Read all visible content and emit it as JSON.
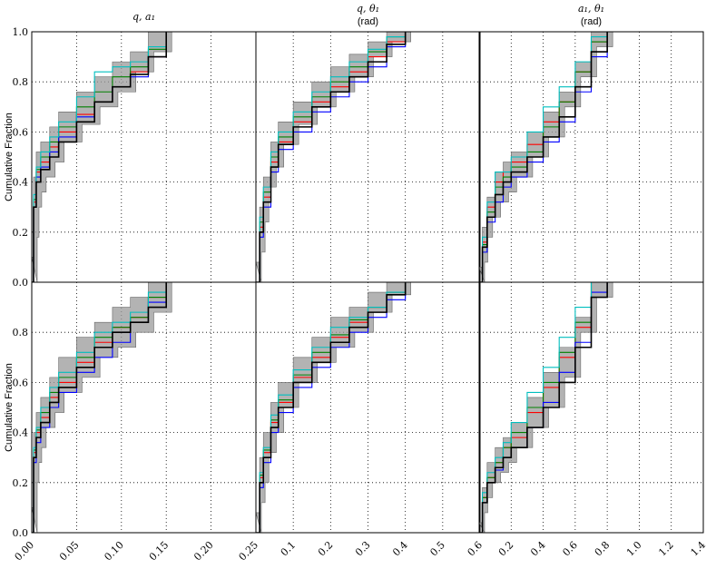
{
  "chart_data": [
    {
      "type": "step",
      "title": "q, a₁",
      "ylabel": "Cumulative Fraction",
      "xlim": [
        0,
        0.25
      ],
      "ylim": [
        0,
        1
      ],
      "grid": true,
      "xticklabels": false,
      "xticks": [
        0.05,
        0.1,
        0.15,
        0.2
      ],
      "yticks": [
        {
          "value": 0,
          "label": "0.0"
        },
        0.2,
        0.4,
        0.6,
        0.8,
        {
          "value": 1,
          "label": "1.0"
        }
      ],
      "x": [
        0,
        0.002,
        0.005,
        0.01,
        0.02,
        0.03,
        0.05,
        0.07,
        0.09,
        0.11,
        0.13,
        0.15
      ],
      "band": {
        "color": "#999999",
        "lower": [
          0,
          0.18,
          0.3,
          0.36,
          0.42,
          0.48,
          0.56,
          0.63,
          0.7,
          0.76,
          0.84,
          0.92
        ],
        "upper": [
          0.1,
          0.42,
          0.52,
          0.56,
          0.62,
          0.68,
          0.76,
          0.82,
          0.88,
          0.92,
          1.0,
          1.0
        ]
      },
      "series": [
        {
          "color": "#ff0000",
          "values": [
            0,
            0.32,
            0.44,
            0.48,
            0.54,
            0.6,
            0.67,
            0.72,
            0.78,
            0.84,
            0.9,
            1.0
          ]
        },
        {
          "color": "#008000",
          "values": [
            0,
            0.33,
            0.45,
            0.5,
            0.56,
            0.62,
            0.7,
            0.76,
            0.82,
            0.86,
            0.93,
            1.0
          ]
        },
        {
          "color": "#0000ff",
          "values": [
            0,
            0.3,
            0.42,
            0.46,
            0.52,
            0.58,
            0.66,
            0.72,
            0.78,
            0.82,
            0.9,
            1.0
          ]
        },
        {
          "color": "#00bfbf",
          "values": [
            0,
            0.35,
            0.46,
            0.52,
            0.58,
            0.64,
            0.74,
            0.84,
            0.86,
            0.88,
            0.94,
            1.0
          ]
        },
        {
          "color": "#000000",
          "values": [
            0,
            0.3,
            0.4,
            0.45,
            0.5,
            0.56,
            0.64,
            0.72,
            0.78,
            0.83,
            0.9,
            1.0
          ]
        }
      ]
    },
    {
      "type": "step",
      "title": "q, θ₁",
      "subtitle": "(rad)",
      "xlim": [
        0,
        0.6
      ],
      "ylim": [
        0,
        1
      ],
      "grid": true,
      "xticklabels": false,
      "yticklabels": false,
      "xticks": [
        0.1,
        0.2,
        0.3,
        0.4,
        0.5
      ],
      "yticks": [
        0.2,
        0.4,
        0.6,
        0.8
      ],
      "x": [
        0,
        0.01,
        0.02,
        0.04,
        0.06,
        0.1,
        0.15,
        0.2,
        0.25,
        0.3,
        0.35,
        0.4
      ],
      "band": {
        "color": "#999999",
        "lower": [
          0,
          0.12,
          0.24,
          0.38,
          0.46,
          0.55,
          0.63,
          0.7,
          0.76,
          0.82,
          0.9,
          0.96
        ],
        "upper": [
          0.08,
          0.3,
          0.42,
          0.56,
          0.64,
          0.72,
          0.8,
          0.86,
          0.91,
          0.96,
          1.0,
          1.0
        ]
      },
      "series": [
        {
          "color": "#ff0000",
          "values": [
            0,
            0.22,
            0.34,
            0.48,
            0.56,
            0.64,
            0.72,
            0.78,
            0.84,
            0.9,
            0.96,
            1.0
          ]
        },
        {
          "color": "#008000",
          "values": [
            0,
            0.24,
            0.36,
            0.5,
            0.58,
            0.66,
            0.74,
            0.8,
            0.86,
            0.92,
            0.98,
            1.0
          ]
        },
        {
          "color": "#0000ff",
          "values": [
            0,
            0.18,
            0.3,
            0.44,
            0.53,
            0.6,
            0.68,
            0.74,
            0.8,
            0.86,
            0.94,
            1.0
          ]
        },
        {
          "color": "#00bfbf",
          "values": [
            0,
            0.26,
            0.38,
            0.52,
            0.6,
            0.68,
            0.76,
            0.82,
            0.88,
            0.93,
            0.98,
            1.0
          ]
        },
        {
          "color": "#000000",
          "values": [
            0,
            0.2,
            0.32,
            0.46,
            0.55,
            0.62,
            0.7,
            0.76,
            0.82,
            0.88,
            0.95,
            1.0
          ]
        }
      ]
    },
    {
      "type": "step",
      "title": "a₁, θ₁",
      "subtitle": "(rad)",
      "xlim": [
        0,
        1.4
      ],
      "ylim": [
        0,
        1
      ],
      "grid": true,
      "xticklabels": false,
      "yticklabels": false,
      "xticks": [
        0.2,
        0.4,
        0.6,
        0.8,
        1,
        1.2
      ],
      "yticks": [
        0.2,
        0.4,
        0.6,
        0.8
      ],
      "x": [
        0,
        0.02,
        0.05,
        0.1,
        0.15,
        0.2,
        0.3,
        0.4,
        0.5,
        0.6,
        0.7,
        0.8
      ],
      "band": {
        "color": "#999999",
        "lower": [
          0,
          0.08,
          0.18,
          0.26,
          0.32,
          0.36,
          0.42,
          0.5,
          0.58,
          0.7,
          0.82,
          0.94
        ],
        "upper": [
          0.06,
          0.22,
          0.34,
          0.44,
          0.48,
          0.52,
          0.6,
          0.68,
          0.76,
          0.88,
          1.0,
          1.0
        ]
      },
      "series": [
        {
          "color": "#ff0000",
          "values": [
            0,
            0.16,
            0.3,
            0.4,
            0.44,
            0.48,
            0.55,
            0.64,
            0.72,
            0.84,
            0.96,
            1.0
          ]
        },
        {
          "color": "#008000",
          "values": [
            0,
            0.15,
            0.28,
            0.38,
            0.42,
            0.46,
            0.52,
            0.62,
            0.72,
            0.84,
            0.96,
            1.0
          ]
        },
        {
          "color": "#0000ff",
          "values": [
            0,
            0.12,
            0.24,
            0.32,
            0.38,
            0.42,
            0.48,
            0.56,
            0.64,
            0.76,
            0.9,
            1.0
          ]
        },
        {
          "color": "#00bfbf",
          "values": [
            0,
            0.18,
            0.32,
            0.44,
            0.44,
            0.5,
            0.6,
            0.7,
            0.78,
            0.88,
            0.98,
            1.0
          ]
        },
        {
          "color": "#000000",
          "values": [
            0,
            0.14,
            0.26,
            0.35,
            0.4,
            0.44,
            0.5,
            0.58,
            0.66,
            0.78,
            0.92,
            1.0
          ]
        }
      ]
    },
    {
      "type": "step",
      "ylabel": "Cumulative Fraction",
      "xlim": [
        0,
        0.25
      ],
      "ylim": [
        0,
        1
      ],
      "grid": true,
      "xticks": [
        {
          "value": 0,
          "label": "0.00"
        },
        0.05,
        {
          "value": 0.1,
          "label": "0.10"
        },
        0.15,
        {
          "value": 0.2,
          "label": "0.20"
        },
        0.25
      ],
      "yticks": [
        {
          "value": 0,
          "label": "0.0"
        },
        0.2,
        0.4,
        0.6,
        0.8
      ],
      "x": [
        0,
        0.002,
        0.005,
        0.01,
        0.02,
        0.03,
        0.05,
        0.07,
        0.09,
        0.11,
        0.13,
        0.15
      ],
      "band": {
        "color": "#999999",
        "lower": [
          0,
          0.2,
          0.28,
          0.34,
          0.42,
          0.48,
          0.56,
          0.62,
          0.7,
          0.74,
          0.8,
          0.88
        ],
        "upper": [
          0.1,
          0.4,
          0.48,
          0.54,
          0.62,
          0.7,
          0.78,
          0.84,
          0.9,
          0.94,
          1.0,
          1.0
        ]
      },
      "series": [
        {
          "color": "#ff0000",
          "values": [
            0,
            0.32,
            0.4,
            0.46,
            0.54,
            0.6,
            0.68,
            0.76,
            0.82,
            0.86,
            0.94,
            1.0
          ]
        },
        {
          "color": "#008000",
          "values": [
            0,
            0.33,
            0.41,
            0.48,
            0.56,
            0.62,
            0.7,
            0.78,
            0.82,
            0.86,
            0.94,
            1.0
          ]
        },
        {
          "color": "#0000ff",
          "values": [
            0,
            0.28,
            0.36,
            0.42,
            0.5,
            0.56,
            0.64,
            0.7,
            0.76,
            0.84,
            0.92,
            1.0
          ]
        },
        {
          "color": "#00bfbf",
          "values": [
            0,
            0.34,
            0.42,
            0.5,
            0.58,
            0.64,
            0.72,
            0.8,
            0.84,
            0.88,
            0.96,
            1.0
          ]
        },
        {
          "color": "#000000",
          "values": [
            0,
            0.3,
            0.38,
            0.44,
            0.52,
            0.58,
            0.66,
            0.74,
            0.8,
            0.84,
            0.9,
            1.0
          ]
        }
      ]
    },
    {
      "type": "step",
      "xlim": [
        0,
        0.6
      ],
      "ylim": [
        0,
        1
      ],
      "grid": true,
      "yticklabels": false,
      "xticks": [
        0.1,
        0.2,
        0.3,
        0.4,
        0.5,
        0.6
      ],
      "yticks": [
        0.2,
        0.4,
        0.6,
        0.8
      ],
      "x": [
        0,
        0.01,
        0.02,
        0.04,
        0.06,
        0.1,
        0.15,
        0.2,
        0.25,
        0.3,
        0.35,
        0.4
      ],
      "band": {
        "color": "#999999",
        "lower": [
          0,
          0.12,
          0.2,
          0.32,
          0.4,
          0.5,
          0.6,
          0.68,
          0.74,
          0.8,
          0.88,
          0.95
        ],
        "upper": [
          0.08,
          0.3,
          0.4,
          0.52,
          0.6,
          0.7,
          0.78,
          0.86,
          0.9,
          0.96,
          1.0,
          1.0
        ]
      },
      "series": [
        {
          "color": "#ff0000",
          "values": [
            0,
            0.22,
            0.32,
            0.44,
            0.52,
            0.62,
            0.7,
            0.78,
            0.84,
            0.9,
            0.96,
            1.0
          ]
        },
        {
          "color": "#008000",
          "values": [
            0,
            0.23,
            0.33,
            0.45,
            0.53,
            0.63,
            0.72,
            0.79,
            0.85,
            0.9,
            0.96,
            1.0
          ]
        },
        {
          "color": "#0000ff",
          "values": [
            0,
            0.18,
            0.28,
            0.4,
            0.48,
            0.58,
            0.66,
            0.74,
            0.8,
            0.86,
            0.93,
            1.0
          ]
        },
        {
          "color": "#00bfbf",
          "values": [
            0,
            0.24,
            0.34,
            0.47,
            0.55,
            0.65,
            0.74,
            0.82,
            0.86,
            0.9,
            0.96,
            1.0
          ]
        },
        {
          "color": "#000000",
          "values": [
            0,
            0.2,
            0.3,
            0.42,
            0.5,
            0.6,
            0.68,
            0.76,
            0.82,
            0.88,
            0.95,
            1.0
          ]
        }
      ]
    },
    {
      "type": "step",
      "xlim": [
        0,
        1.4
      ],
      "ylim": [
        0,
        1
      ],
      "grid": true,
      "yticklabels": false,
      "xticks": [
        0.2,
        0.4,
        0.6,
        0.8,
        {
          "value": 1,
          "label": "1.0"
        },
        1.2,
        1.4
      ],
      "yticks": [
        0.2,
        0.4,
        0.6,
        0.8
      ],
      "x": [
        0,
        0.02,
        0.05,
        0.1,
        0.15,
        0.2,
        0.3,
        0.4,
        0.5,
        0.6,
        0.7,
        0.8
      ],
      "band": {
        "color": "#999999",
        "lower": [
          0,
          0.08,
          0.14,
          0.2,
          0.24,
          0.28,
          0.34,
          0.42,
          0.5,
          0.62,
          0.8,
          0.94
        ],
        "upper": [
          0.04,
          0.18,
          0.28,
          0.34,
          0.38,
          0.44,
          0.54,
          0.64,
          0.74,
          0.86,
          1.0,
          1.0
        ]
      },
      "series": [
        {
          "color": "#ff0000",
          "values": [
            0,
            0.14,
            0.22,
            0.28,
            0.34,
            0.38,
            0.48,
            0.58,
            0.7,
            0.82,
            1.0,
            1.0
          ]
        },
        {
          "color": "#008000",
          "values": [
            0,
            0.14,
            0.22,
            0.28,
            0.34,
            0.4,
            0.5,
            0.6,
            0.72,
            0.84,
            1.0,
            1.0
          ]
        },
        {
          "color": "#0000ff",
          "values": [
            0,
            0.12,
            0.2,
            0.25,
            0.3,
            0.34,
            0.42,
            0.52,
            0.64,
            0.76,
            0.96,
            1.0
          ]
        },
        {
          "color": "#00bfbf",
          "values": [
            0,
            0.16,
            0.24,
            0.3,
            0.36,
            0.44,
            0.56,
            0.66,
            0.78,
            0.9,
            1.0,
            1.0
          ]
        },
        {
          "color": "#000000",
          "values": [
            0,
            0.12,
            0.2,
            0.26,
            0.3,
            0.34,
            0.42,
            0.5,
            0.6,
            0.74,
            0.94,
            1.0
          ]
        }
      ]
    }
  ]
}
